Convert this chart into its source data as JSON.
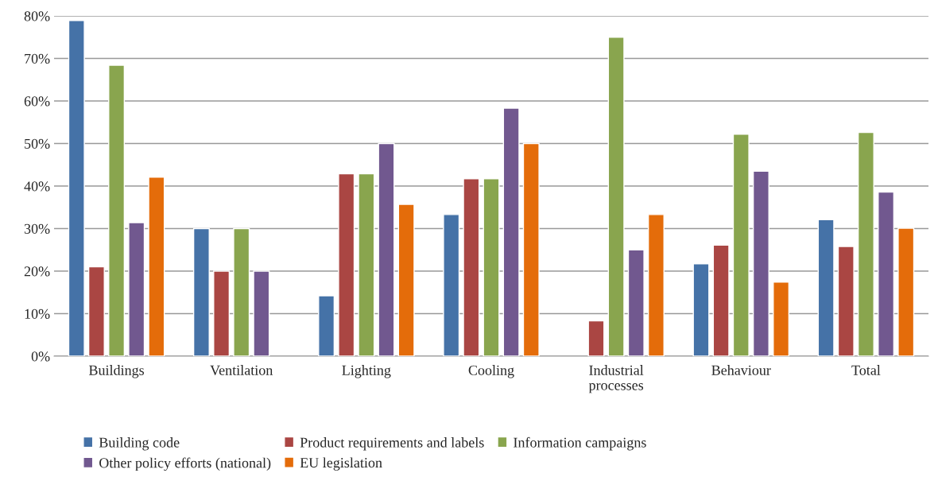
{
  "chart_data": {
    "type": "bar",
    "categories": [
      "Buildings",
      "Ventilation",
      "Lighting",
      "Cooling",
      "Industrial\nprocesses",
      "Behaviour",
      "Total"
    ],
    "series": [
      {
        "name": "Building code",
        "color": "#4572a7",
        "values": [
          78.9,
          30,
          14.2,
          33.3,
          null,
          21.7,
          32.1
        ]
      },
      {
        "name": "Product requirements and labels",
        "color": "#aa4643",
        "values": [
          21,
          20,
          42.9,
          41.7,
          8.3,
          26.1,
          25.8
        ]
      },
      {
        "name": "Information campaigns",
        "color": "#89a54e",
        "values": [
          68.4,
          30,
          42.9,
          41.7,
          75,
          52.2,
          52.6
        ]
      },
      {
        "name": "Other policy efforts (national)",
        "color": "#71588f",
        "values": [
          31.4,
          20,
          50,
          58.3,
          25,
          43.5,
          38.6
        ]
      },
      {
        "name": "EU legislation",
        "color": "#e46c0a",
        "values": [
          42.1,
          null,
          35.7,
          50,
          33.3,
          17.4,
          30.1
        ]
      }
    ],
    "ylim": [
      0,
      80
    ],
    "yticks": [
      {
        "value": 0,
        "label": "0%"
      },
      {
        "value": 10,
        "label": "10%"
      },
      {
        "value": 20,
        "label": "20%"
      },
      {
        "value": 30,
        "label": "30%"
      },
      {
        "value": 40,
        "label": "40%"
      },
      {
        "value": 50,
        "label": "50%"
      },
      {
        "value": 60,
        "label": "60%"
      },
      {
        "value": 70,
        "label": "70%"
      },
      {
        "value": 80,
        "label": "80%"
      }
    ],
    "grid": "y",
    "legend": "bottom"
  }
}
